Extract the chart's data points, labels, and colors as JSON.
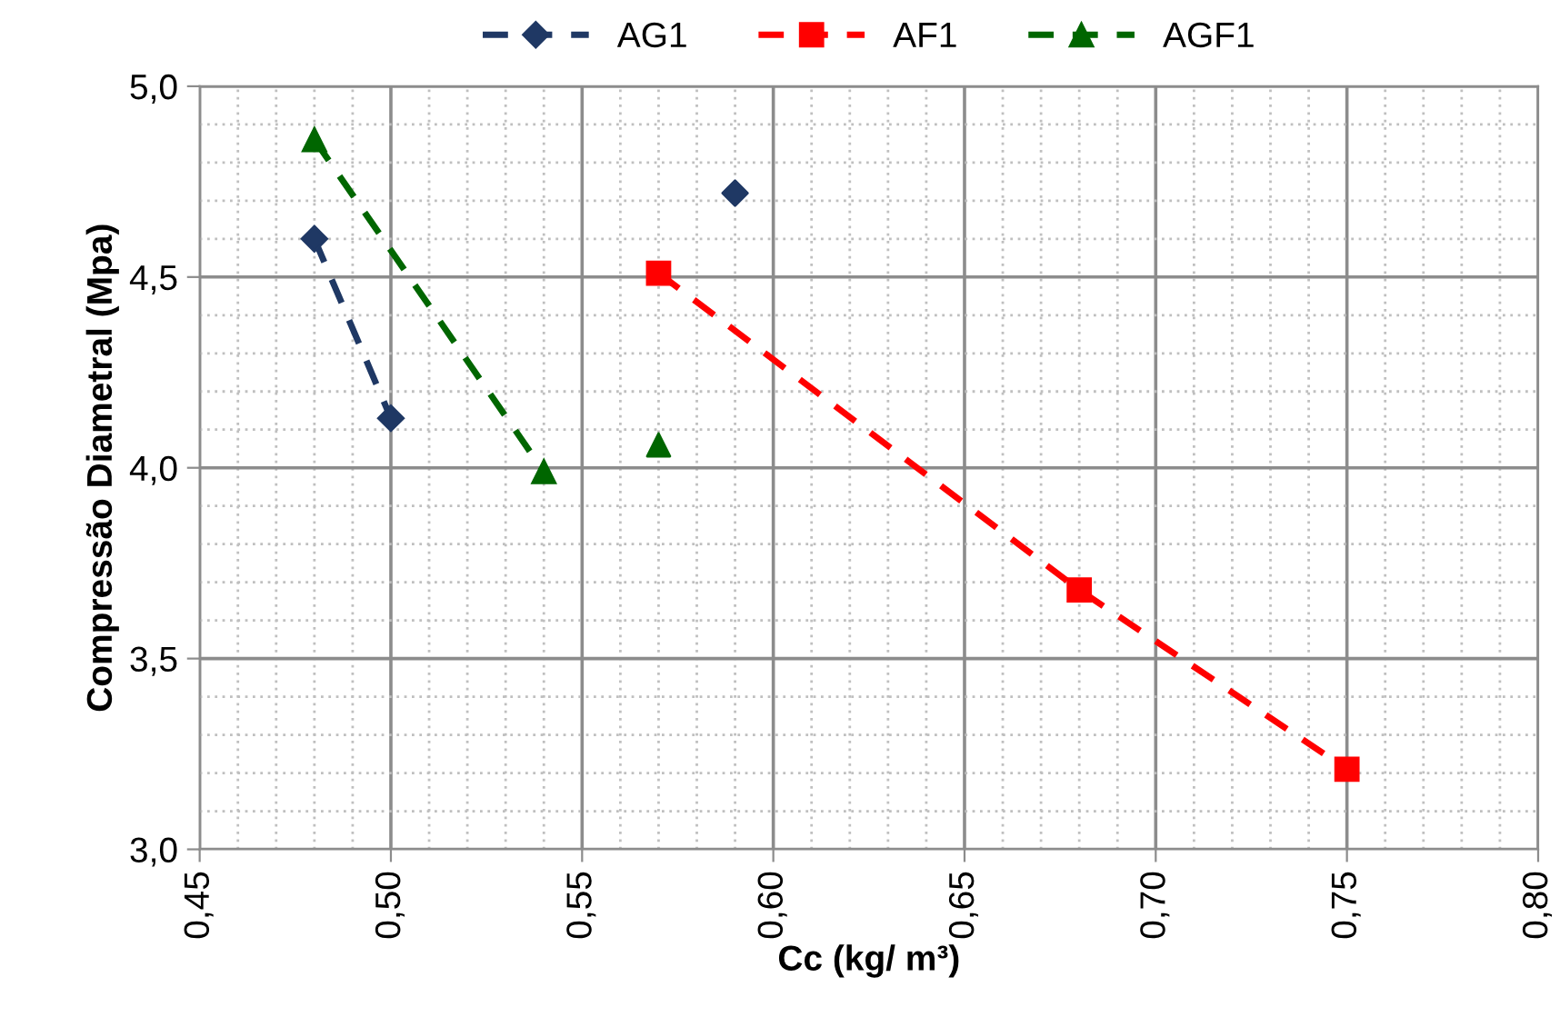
{
  "chart_data": {
    "type": "line",
    "xlabel": "Cc (kg/ m³)",
    "ylabel": "Compressão Diametral (Mpa)",
    "xlim": [
      0.45,
      0.8
    ],
    "ylim": [
      3.0,
      5.0
    ],
    "xticks": [
      {
        "value": 0.45,
        "label": "0,45"
      },
      {
        "value": 0.5,
        "label": "0,50"
      },
      {
        "value": 0.55,
        "label": "0,55"
      },
      {
        "value": 0.6,
        "label": "0,60"
      },
      {
        "value": 0.65,
        "label": "0,65"
      },
      {
        "value": 0.7,
        "label": "0,70"
      },
      {
        "value": 0.75,
        "label": "0,75"
      },
      {
        "value": 0.8,
        "label": "0,80"
      }
    ],
    "yticks": [
      {
        "value": 3.0,
        "label": "3,0"
      },
      {
        "value": 3.5,
        "label": "3,5"
      },
      {
        "value": 4.0,
        "label": "4,0"
      },
      {
        "value": 4.5,
        "label": "4,5"
      },
      {
        "value": 5.0,
        "label": "5,0"
      }
    ],
    "grid": true,
    "legend": "top",
    "line_style": "dashed",
    "series": [
      {
        "name": "AG1",
        "color": "#1f3864",
        "marker": "diamond",
        "x": [
          0.48,
          0.5
        ],
        "values": [
          4.6,
          4.13
        ]
      },
      {
        "name": "AF1",
        "color": "#ff0000",
        "marker": "square",
        "x": [
          0.57,
          0.68,
          0.75
        ],
        "values": [
          4.51,
          3.68,
          3.21
        ]
      },
      {
        "name": "AGF1",
        "color": "#006600",
        "marker": "triangle",
        "x": [
          0.48,
          0.54
        ],
        "values": [
          4.86,
          3.99
        ]
      },
      {
        "type": "scatter",
        "color": "#1f3864",
        "marker": "diamond",
        "x": [
          0.59
        ],
        "values": [
          4.72
        ]
      },
      {
        "type": "scatter",
        "color": "#006600",
        "marker": "triangle",
        "x": [
          0.57
        ],
        "values": [
          4.06
        ]
      }
    ]
  }
}
